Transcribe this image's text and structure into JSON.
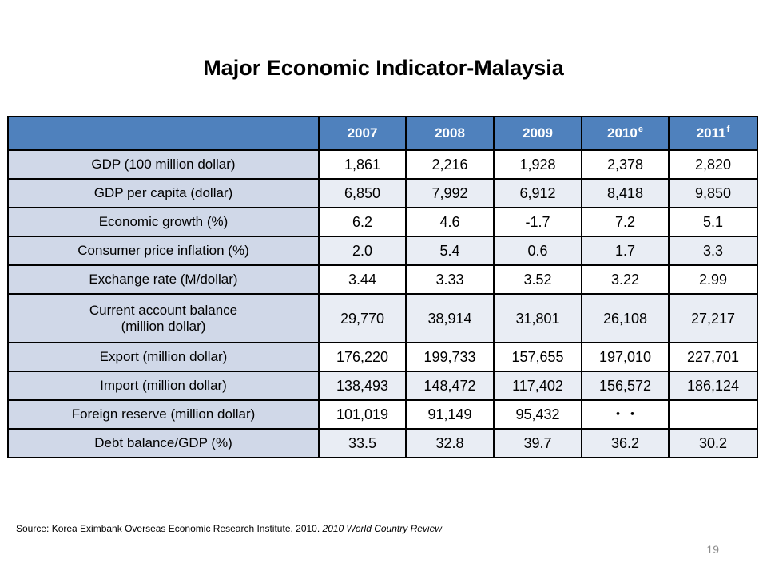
{
  "title": "Major Economic Indicator-Malaysia",
  "table": {
    "header": [
      {
        "year": "2007",
        "sup": ""
      },
      {
        "year": "2008",
        "sup": ""
      },
      {
        "year": "2009",
        "sup": ""
      },
      {
        "year": "2010",
        "sup": "e"
      },
      {
        "year": "2011",
        "sup": "f"
      }
    ],
    "rows": [
      {
        "label": "GDP (100 million dollar)",
        "values": [
          "1,861",
          "2,216",
          "1,928",
          "2,378",
          "2,820"
        ]
      },
      {
        "label": "GDP per capita (dollar)",
        "values": [
          "6,850",
          "7,992",
          "6,912",
          "8,418",
          "9,850"
        ]
      },
      {
        "label": "Economic growth (%)",
        "values": [
          "6.2",
          "4.6",
          "-1.7",
          "7.2",
          "5.1"
        ]
      },
      {
        "label": "Consumer price inflation (%)",
        "values": [
          "2.0",
          "5.4",
          "0.6",
          "1.7",
          "3.3"
        ]
      },
      {
        "label": "Exchange rate (M/dollar)",
        "values": [
          "3.44",
          "3.33",
          "3.52",
          "3.22",
          "2.99"
        ]
      },
      {
        "label": "Current account balance\n(million dollar)",
        "values": [
          "29,770",
          "38,914",
          "31,801",
          "26,108",
          "27,217"
        ]
      },
      {
        "label": "Export (million dollar)",
        "values": [
          "176,220",
          "199,733",
          "157,655",
          "197,010",
          "227,701"
        ]
      },
      {
        "label": "Import (million dollar)",
        "values": [
          "138,493",
          "148,472",
          "117,402",
          "156,572",
          "186,124"
        ]
      },
      {
        "label": "Foreign reserve (million dollar)",
        "values": [
          "101,019",
          "91,149",
          "95,432",
          "・・",
          ""
        ]
      },
      {
        "label": "Debt balance/GDP (%)",
        "values": [
          "33.5",
          "32.8",
          "39.7",
          "36.2",
          "30.2"
        ]
      }
    ]
  },
  "source": {
    "prefix": "Source: Korea Eximbank Overseas Economic Research Institute. 2010. ",
    "italic": "2010 World Country Review"
  },
  "page_number": "19"
}
